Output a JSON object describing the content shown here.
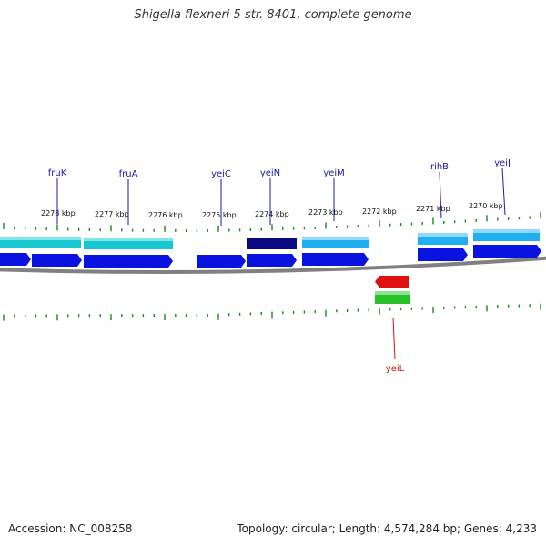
{
  "title": "Shigella flexneri 5 str. 8401, complete genome",
  "footer": {
    "accession": "Accession: NC_008258",
    "stats": "Topology: circular; Length: 4,574,284 bp; Genes: 4,233"
  },
  "colors": {
    "backbone": "#808080",
    "tick": "#1a8a1a",
    "gene_label_forward": "#1a1aa8",
    "gene_label_reverse": "#cc1111",
    "cds_blue": "#0a12e0",
    "cds_cyan": "#18c8d0",
    "cds_lightblue": "#20b0f0",
    "cds_navy": "#0a0a80",
    "cds_red": "#e01010",
    "cds_green": "#28c028"
  },
  "kbp_labels": [
    "2278 kbp",
    "2277 kbp",
    "2276 kbp",
    "2275 kbp",
    "2274 kbp",
    "2273 kbp",
    "2272 kbp",
    "2271 kbp",
    "2270 kbp"
  ],
  "gene_labels": [
    {
      "name": "fruK",
      "strand": "forward"
    },
    {
      "name": "fruA",
      "strand": "forward"
    },
    {
      "name": "yeiC",
      "strand": "forward"
    },
    {
      "name": "yeiN",
      "strand": "forward"
    },
    {
      "name": "yeiM",
      "strand": "forward"
    },
    {
      "name": "rihB",
      "strand": "forward"
    },
    {
      "name": "yeiJ",
      "strand": "forward"
    },
    {
      "name": "yeiL",
      "strand": "reverse"
    }
  ]
}
